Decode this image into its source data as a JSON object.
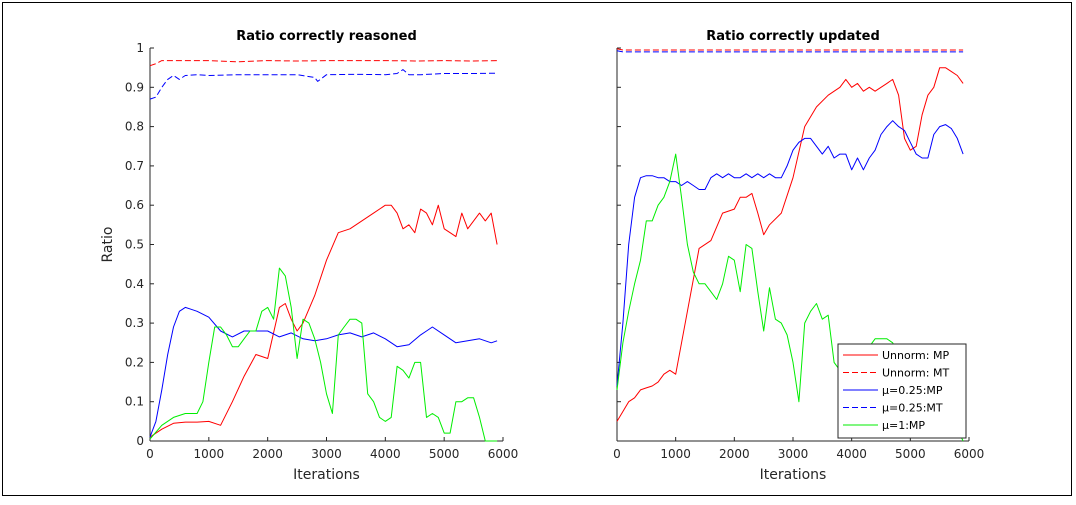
{
  "chart_data": [
    {
      "type": "line",
      "title": "Ratio correctly reasoned",
      "xlabel": "Iterations",
      "ylabel": "Ratio",
      "xlim": [
        0,
        6000
      ],
      "ylim": [
        0,
        1
      ],
      "xticks": [
        "0",
        "1000",
        "2000",
        "3000",
        "4000",
        "5000",
        "6000"
      ],
      "yticks": [
        "0",
        "0.1",
        "0.2",
        "0.3",
        "0.4",
        "0.5",
        "0.6",
        "0.7",
        "0.8",
        "0.9",
        "1"
      ],
      "grid": false,
      "series": [
        {
          "name": "Unnorm: MP",
          "color": "#ff0000",
          "dash": "solid",
          "x": [
            0,
            200,
            400,
            600,
            800,
            1000,
            1200,
            1400,
            1600,
            1800,
            2000,
            2200,
            2300,
            2400,
            2500,
            2600,
            2800,
            3000,
            3200,
            3400,
            3600,
            3800,
            4000,
            4100,
            4200,
            4300,
            4400,
            4500,
            4600,
            4700,
            4800,
            4900,
            5000,
            5100,
            5200,
            5300,
            5400,
            5500,
            5600,
            5700,
            5800,
            5900
          ],
          "y": [
            0.01,
            0.03,
            0.045,
            0.048,
            0.048,
            0.05,
            0.04,
            0.1,
            0.165,
            0.22,
            0.21,
            0.34,
            0.35,
            0.31,
            0.28,
            0.3,
            0.37,
            0.46,
            0.53,
            0.54,
            0.56,
            0.58,
            0.6,
            0.6,
            0.58,
            0.54,
            0.55,
            0.53,
            0.59,
            0.58,
            0.55,
            0.6,
            0.54,
            0.53,
            0.52,
            0.58,
            0.54,
            0.56,
            0.58,
            0.56,
            0.58,
            0.5
          ]
        },
        {
          "name": "Unnorm: MT",
          "color": "#ff0000",
          "dash": "dashed",
          "x": [
            0,
            100,
            200,
            400,
            600,
            1000,
            1500,
            2000,
            2500,
            3000,
            3500,
            4000,
            4500,
            5000,
            5500,
            5900
          ],
          "y": [
            0.955,
            0.96,
            0.968,
            0.968,
            0.968,
            0.968,
            0.965,
            0.968,
            0.967,
            0.968,
            0.968,
            0.968,
            0.967,
            0.968,
            0.967,
            0.968
          ]
        },
        {
          "name": "μ=0.25:MP",
          "color": "#0000ff",
          "dash": "solid",
          "x": [
            0,
            100,
            200,
            300,
            400,
            500,
            600,
            700,
            800,
            1000,
            1200,
            1400,
            1600,
            1800,
            2000,
            2200,
            2400,
            2600,
            2800,
            3000,
            3200,
            3400,
            3600,
            3800,
            4000,
            4200,
            4400,
            4600,
            4700,
            4800,
            5000,
            5200,
            5400,
            5600,
            5800,
            5900
          ],
          "y": [
            0.01,
            0.05,
            0.13,
            0.22,
            0.29,
            0.33,
            0.34,
            0.335,
            0.33,
            0.315,
            0.28,
            0.265,
            0.28,
            0.28,
            0.28,
            0.265,
            0.275,
            0.26,
            0.255,
            0.26,
            0.27,
            0.275,
            0.265,
            0.275,
            0.26,
            0.24,
            0.245,
            0.27,
            0.28,
            0.29,
            0.27,
            0.25,
            0.255,
            0.26,
            0.25,
            0.255
          ]
        },
        {
          "name": "μ=0.25:MT",
          "color": "#0000ff",
          "dash": "dashed",
          "x": [
            0,
            100,
            200,
            300,
            400,
            500,
            600,
            800,
            1000,
            1500,
            2000,
            2500,
            2800,
            2850,
            3000,
            3500,
            4000,
            4200,
            4300,
            4400,
            4600,
            5000,
            5500,
            5900
          ],
          "y": [
            0.87,
            0.875,
            0.9,
            0.92,
            0.93,
            0.92,
            0.93,
            0.932,
            0.93,
            0.932,
            0.932,
            0.932,
            0.925,
            0.915,
            0.932,
            0.933,
            0.932,
            0.935,
            0.945,
            0.932,
            0.932,
            0.935,
            0.935,
            0.936
          ]
        },
        {
          "name": "μ=1:MP",
          "color": "#00ee00",
          "dash": "solid",
          "x": [
            0,
            200,
            400,
            600,
            800,
            900,
            1000,
            1100,
            1200,
            1300,
            1400,
            1500,
            1600,
            1700,
            1800,
            1900,
            2000,
            2100,
            2200,
            2300,
            2400,
            2500,
            2600,
            2700,
            2800,
            2900,
            3000,
            3100,
            3200,
            3300,
            3400,
            3500,
            3600,
            3700,
            3800,
            3900,
            4000,
            4100,
            4200,
            4300,
            4400,
            4500,
            4600,
            4700,
            4800,
            4900,
            5000,
            5100,
            5200,
            5300,
            5400,
            5500,
            5600,
            5700,
            5800,
            5900
          ],
          "y": [
            0.005,
            0.04,
            0.06,
            0.07,
            0.07,
            0.1,
            0.2,
            0.29,
            0.29,
            0.27,
            0.24,
            0.24,
            0.26,
            0.28,
            0.28,
            0.33,
            0.34,
            0.31,
            0.44,
            0.42,
            0.34,
            0.21,
            0.31,
            0.3,
            0.26,
            0.2,
            0.12,
            0.07,
            0.27,
            0.29,
            0.31,
            0.31,
            0.3,
            0.12,
            0.1,
            0.06,
            0.05,
            0.06,
            0.19,
            0.18,
            0.16,
            0.2,
            0.2,
            0.06,
            0.07,
            0.06,
            0.02,
            0.02,
            0.1,
            0.1,
            0.11,
            0.11,
            0.06,
            0.0,
            0.0,
            0.0
          ]
        }
      ]
    },
    {
      "type": "line",
      "title": "Ratio correctly updated",
      "xlabel": "Iterations",
      "ylabel": "",
      "xlim": [
        0,
        6000
      ],
      "ylim": [
        0,
        1
      ],
      "xticks": [
        "0",
        "1000",
        "2000",
        "3000",
        "4000",
        "5000",
        "6000"
      ],
      "grid": false,
      "legend": {
        "position": "bottom-right",
        "entries": [
          "Unnorm: MP",
          "Unnorm: MT",
          "μ=0.25:MP",
          "μ=0.25:MT",
          "μ=1:MP"
        ]
      },
      "series": [
        {
          "name": "Unnorm: MP",
          "color": "#ff0000",
          "dash": "solid",
          "x": [
            0,
            100,
            200,
            300,
            400,
            500,
            600,
            700,
            800,
            900,
            1000,
            1200,
            1400,
            1600,
            1800,
            2000,
            2100,
            2200,
            2300,
            2400,
            2500,
            2600,
            2800,
            3000,
            3200,
            3400,
            3600,
            3800,
            3900,
            4000,
            4100,
            4200,
            4300,
            4400,
            4500,
            4600,
            4700,
            4800,
            4900,
            5000,
            5100,
            5200,
            5300,
            5400,
            5500,
            5600,
            5700,
            5800,
            5900
          ],
          "y": [
            0.05,
            0.075,
            0.1,
            0.11,
            0.13,
            0.135,
            0.14,
            0.15,
            0.17,
            0.18,
            0.17,
            0.33,
            0.49,
            0.51,
            0.58,
            0.59,
            0.62,
            0.62,
            0.63,
            0.58,
            0.525,
            0.55,
            0.58,
            0.67,
            0.8,
            0.85,
            0.88,
            0.9,
            0.92,
            0.9,
            0.91,
            0.89,
            0.9,
            0.89,
            0.9,
            0.91,
            0.92,
            0.88,
            0.77,
            0.74,
            0.75,
            0.83,
            0.88,
            0.9,
            0.95,
            0.95,
            0.94,
            0.93,
            0.91
          ]
        },
        {
          "name": "Unnorm: MT",
          "color": "#ff0000",
          "dash": "dashed",
          "x": [
            0,
            100,
            300,
            600,
            1000,
            2000,
            3000,
            4000,
            5000,
            5900
          ],
          "y": [
            0.998,
            0.995,
            0.995,
            0.995,
            0.995,
            0.995,
            0.995,
            0.995,
            0.995,
            0.995
          ]
        },
        {
          "name": "μ=0.25:MP",
          "color": "#0000ff",
          "dash": "solid",
          "x": [
            0,
            100,
            200,
            300,
            400,
            500,
            600,
            700,
            800,
            900,
            1000,
            1100,
            1200,
            1300,
            1400,
            1500,
            1600,
            1700,
            1800,
            1900,
            2000,
            2100,
            2200,
            2300,
            2400,
            2500,
            2600,
            2700,
            2800,
            2900,
            3000,
            3100,
            3200,
            3300,
            3400,
            3500,
            3600,
            3700,
            3800,
            3900,
            4000,
            4100,
            4200,
            4300,
            4400,
            4500,
            4600,
            4700,
            4800,
            4900,
            5000,
            5100,
            5200,
            5300,
            5400,
            5500,
            5600,
            5700,
            5800,
            5900
          ],
          "y": [
            0.14,
            0.3,
            0.5,
            0.62,
            0.67,
            0.675,
            0.675,
            0.67,
            0.67,
            0.66,
            0.66,
            0.65,
            0.66,
            0.65,
            0.64,
            0.64,
            0.67,
            0.68,
            0.67,
            0.68,
            0.67,
            0.67,
            0.68,
            0.67,
            0.68,
            0.67,
            0.68,
            0.67,
            0.67,
            0.7,
            0.74,
            0.76,
            0.77,
            0.77,
            0.75,
            0.73,
            0.75,
            0.72,
            0.73,
            0.73,
            0.69,
            0.72,
            0.69,
            0.72,
            0.74,
            0.78,
            0.8,
            0.815,
            0.8,
            0.79,
            0.76,
            0.73,
            0.72,
            0.72,
            0.78,
            0.8,
            0.805,
            0.795,
            0.77,
            0.73
          ]
        },
        {
          "name": "μ=0.25:MT",
          "color": "#0000ff",
          "dash": "dashed",
          "x": [
            0,
            100,
            300,
            600,
            1000,
            2000,
            3000,
            4000,
            5000,
            5900
          ],
          "y": [
            0.993,
            0.99,
            0.99,
            0.99,
            0.99,
            0.99,
            0.99,
            0.99,
            0.99,
            0.99
          ]
        },
        {
          "name": "μ=1:MP",
          "color": "#00ee00",
          "dash": "solid",
          "x": [
            0,
            100,
            200,
            300,
            400,
            500,
            600,
            700,
            800,
            900,
            1000,
            1100,
            1200,
            1300,
            1400,
            1500,
            1600,
            1700,
            1800,
            1900,
            2000,
            2100,
            2200,
            2300,
            2400,
            2500,
            2600,
            2700,
            2800,
            2900,
            3000,
            3100,
            3200,
            3300,
            3400,
            3500,
            3600,
            3700,
            3800,
            3900,
            4000,
            4100,
            4200,
            4300,
            4400,
            4500,
            4600,
            4700,
            4800,
            4900,
            5000,
            5100,
            5200,
            5300,
            5400,
            5500,
            5600,
            5700,
            5800,
            5900
          ],
          "y": [
            0.13,
            0.25,
            0.33,
            0.4,
            0.46,
            0.56,
            0.56,
            0.6,
            0.62,
            0.66,
            0.73,
            0.62,
            0.5,
            0.43,
            0.4,
            0.4,
            0.38,
            0.36,
            0.4,
            0.47,
            0.46,
            0.38,
            0.5,
            0.49,
            0.38,
            0.28,
            0.39,
            0.31,
            0.3,
            0.27,
            0.2,
            0.1,
            0.3,
            0.33,
            0.35,
            0.31,
            0.32,
            0.2,
            0.18,
            0.2,
            0.22,
            0.19,
            0.22,
            0.24,
            0.26,
            0.26,
            0.26,
            0.25,
            0.22,
            0.2,
            0.18,
            0.16,
            0.15,
            0.14,
            0.12,
            0.1,
            0.08,
            0.06,
            0.03,
            0.0
          ]
        }
      ]
    }
  ]
}
